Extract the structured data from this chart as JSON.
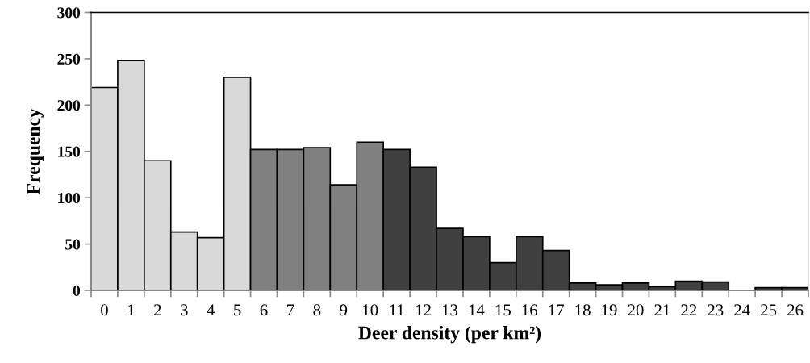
{
  "chart_data": {
    "type": "bar",
    "xlabel": "Deer density (per km²)",
    "ylabel": "Frequency",
    "categories": [
      "0",
      "1",
      "2",
      "3",
      "4",
      "5",
      "6",
      "7",
      "8",
      "9",
      "10",
      "11",
      "12",
      "13",
      "14",
      "15",
      "16",
      "17",
      "18",
      "19",
      "20",
      "21",
      "22",
      "23",
      "24",
      "25",
      "26"
    ],
    "values": [
      219,
      248,
      140,
      63,
      57,
      230,
      152,
      152,
      154,
      114,
      160,
      152,
      133,
      67,
      58,
      30,
      58,
      43,
      8,
      6,
      8,
      4,
      10,
      9,
      null,
      3,
      3
    ],
    "colors": [
      "#d9d9d9",
      "#d9d9d9",
      "#d9d9d9",
      "#d9d9d9",
      "#d9d9d9",
      "#d9d9d9",
      "#808080",
      "#808080",
      "#808080",
      "#808080",
      "#808080",
      "#404040",
      "#404040",
      "#404040",
      "#404040",
      "#404040",
      "#404040",
      "#404040",
      "#404040",
      "#404040",
      "#404040",
      "#404040",
      "#404040",
      "#404040",
      "#404040",
      "#404040",
      "#404040"
    ],
    "ylim": [
      0,
      300
    ],
    "yticks": [
      0,
      50,
      100,
      150,
      200,
      250,
      300
    ],
    "grid": false
  }
}
